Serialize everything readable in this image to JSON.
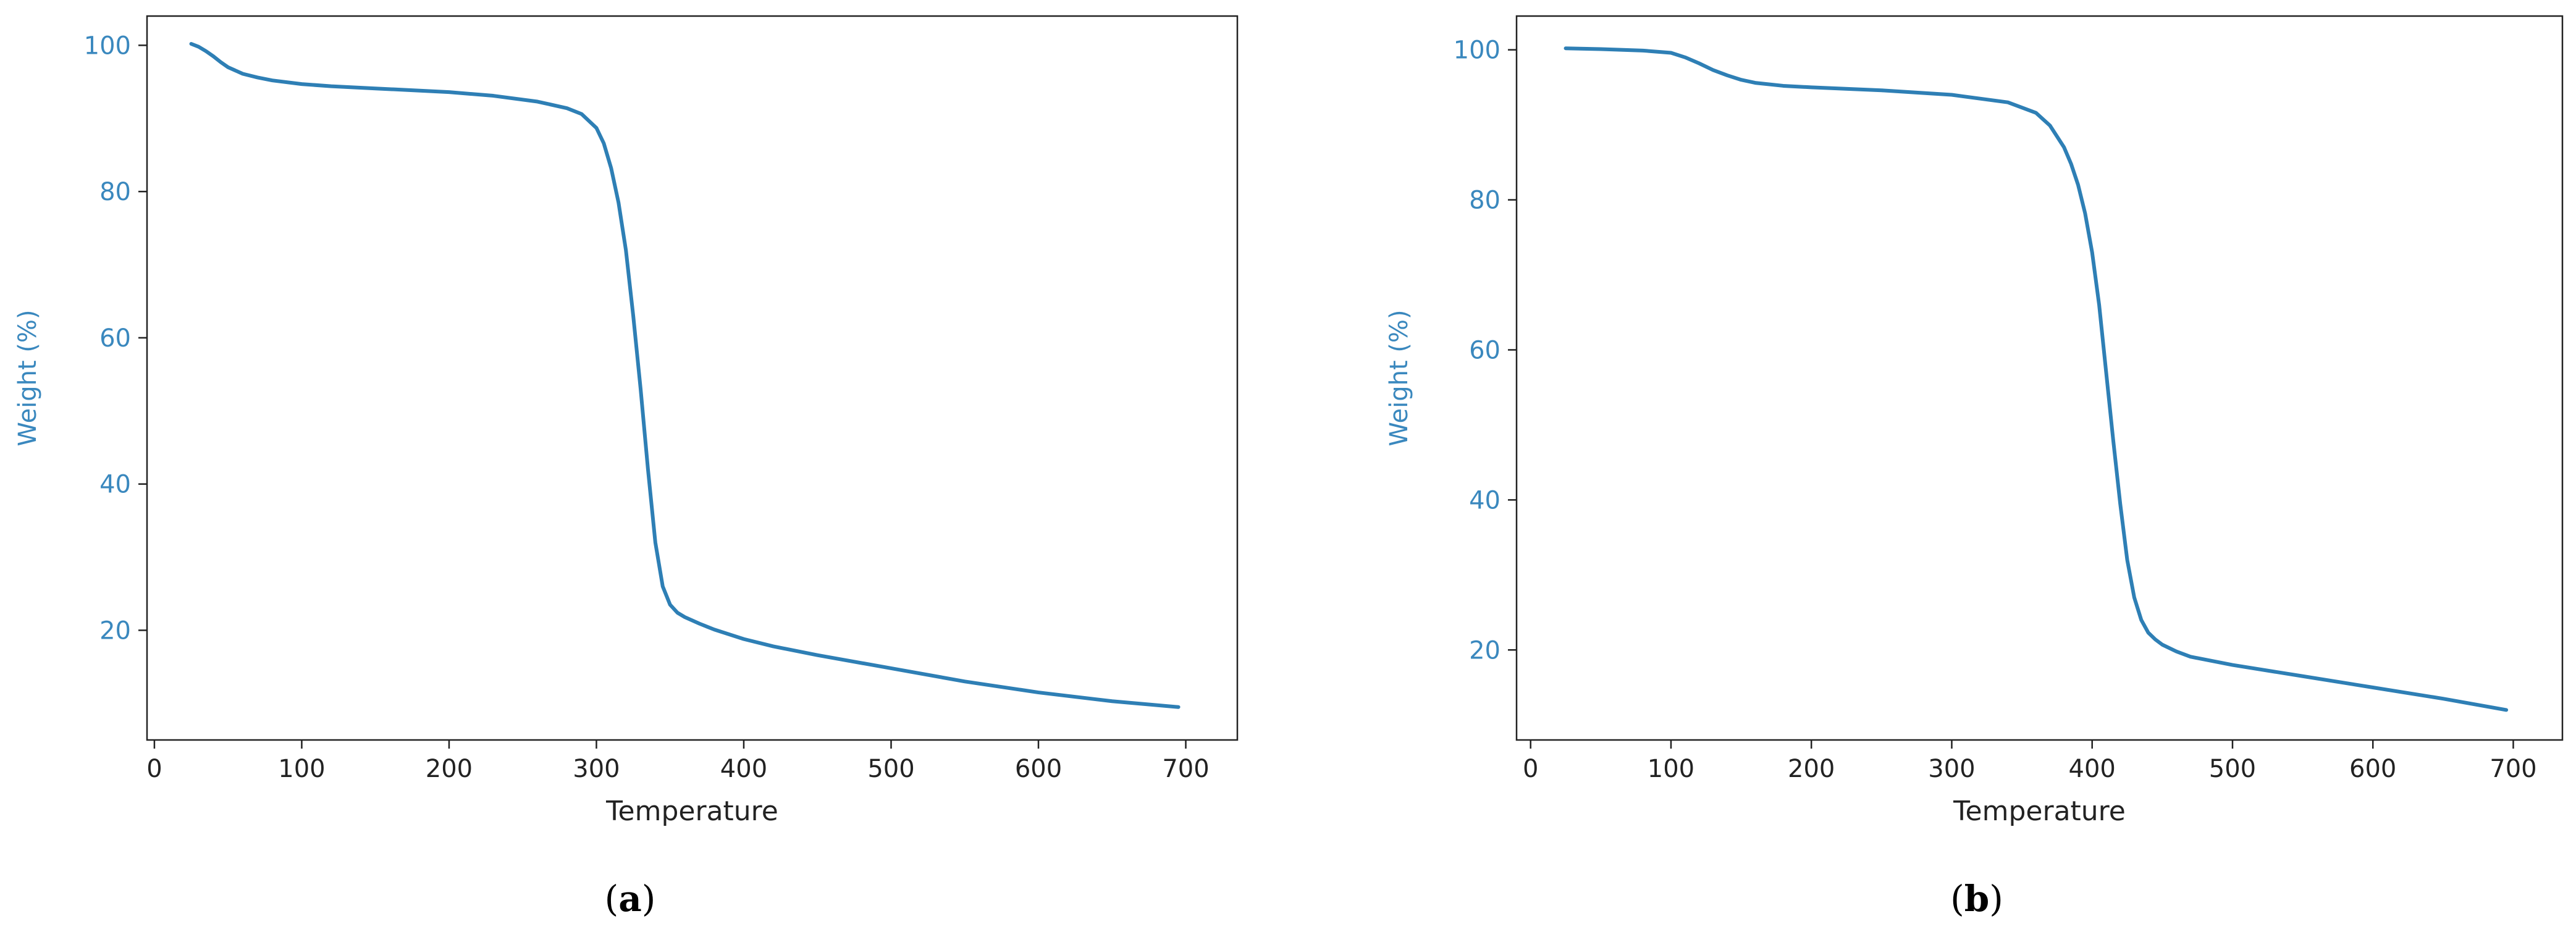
{
  "colors": {
    "line": "#2e7fb5",
    "y_axis_text": "#3a88be",
    "x_axis_text": "#222222",
    "frame": "#222222"
  },
  "chart_data": [
    {
      "type": "line",
      "caption_open": "(",
      "caption_letter": "a",
      "caption_close": ")",
      "xlabel": "Temperature",
      "ylabel": "Weight (%)",
      "xlim": [
        -5,
        735
      ],
      "ylim": [
        5,
        104
      ],
      "xticks": [
        0,
        100,
        200,
        300,
        400,
        500,
        600,
        700
      ],
      "yticks": [
        20,
        40,
        60,
        80,
        100
      ],
      "grid": false,
      "series": [
        {
          "x": [
            25,
            30,
            35,
            40,
            45,
            50,
            60,
            70,
            80,
            100,
            120,
            150,
            200,
            230,
            260,
            280,
            290,
            300,
            305,
            310,
            315,
            320,
            325,
            330,
            335,
            340,
            345,
            350,
            355,
            360,
            370,
            380,
            400,
            420,
            450,
            500,
            550,
            600,
            650,
            695
          ],
          "y": [
            100.2,
            99.8,
            99.2,
            98.5,
            97.7,
            97.0,
            96.1,
            95.6,
            95.2,
            94.7,
            94.4,
            94.1,
            93.6,
            93.1,
            92.3,
            91.4,
            90.6,
            88.7,
            86.6,
            83.2,
            78.5,
            72.0,
            63.0,
            53.0,
            42.0,
            32.0,
            26.0,
            23.5,
            22.4,
            21.8,
            20.9,
            20.1,
            18.8,
            17.8,
            16.6,
            14.8,
            13.0,
            11.5,
            10.3,
            9.5
          ]
        }
      ]
    },
    {
      "type": "line",
      "caption_open": "(",
      "caption_letter": "b",
      "caption_close": ")",
      "xlabel": "Temperature",
      "ylabel": "Weight (%)",
      "xlim": [
        -10,
        735
      ],
      "ylim": [
        8,
        104.5
      ],
      "xticks": [
        0,
        100,
        200,
        300,
        400,
        500,
        600,
        700
      ],
      "yticks": [
        20,
        40,
        60,
        80,
        100
      ],
      "grid": false,
      "series": [
        {
          "x": [
            25,
            50,
            80,
            100,
            110,
            120,
            130,
            140,
            150,
            160,
            180,
            200,
            250,
            300,
            340,
            360,
            370,
            380,
            385,
            390,
            395,
            400,
            405,
            410,
            415,
            420,
            425,
            430,
            435,
            440,
            445,
            450,
            460,
            470,
            500,
            550,
            600,
            650,
            695
          ],
          "y": [
            100.2,
            100.1,
            99.9,
            99.6,
            99.0,
            98.2,
            97.3,
            96.6,
            96.0,
            95.6,
            95.2,
            95.0,
            94.6,
            94.0,
            93.0,
            91.6,
            89.9,
            87.0,
            84.8,
            82.0,
            78.2,
            73.0,
            66.0,
            57.0,
            48.0,
            39.5,
            32.0,
            27.0,
            24.0,
            22.3,
            21.4,
            20.7,
            19.8,
            19.1,
            18.0,
            16.5,
            15.0,
            13.5,
            12.0
          ]
        }
      ]
    }
  ]
}
